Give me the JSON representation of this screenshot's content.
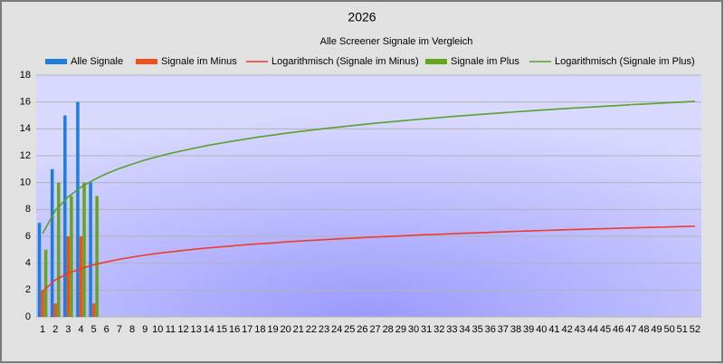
{
  "chart_data": {
    "type": "bar",
    "title": "2026",
    "subtitle": "Alle Screener Signale im Vergleich",
    "categories": [
      1,
      2,
      3,
      4,
      5,
      6,
      7,
      8,
      9,
      10,
      11,
      12,
      13,
      14,
      15,
      16,
      17,
      18,
      19,
      20,
      21,
      22,
      23,
      24,
      25,
      26,
      27,
      28,
      29,
      30,
      31,
      32,
      33,
      34,
      35,
      36,
      37,
      38,
      39,
      40,
      41,
      42,
      43,
      44,
      45,
      46,
      47,
      48,
      49,
      50,
      51,
      52
    ],
    "ylim": [
      0,
      18
    ],
    "yticks": [
      0,
      2,
      4,
      6,
      8,
      10,
      12,
      14,
      16,
      18
    ],
    "grid": true,
    "legend": "top",
    "series": [
      {
        "name": "Alle Signale",
        "type": "bar",
        "color": "#1f7fd8",
        "values": [
          7,
          11,
          15,
          16,
          10,
          null,
          null,
          null,
          null,
          null,
          null,
          null,
          null,
          null,
          null,
          null,
          null,
          null,
          null,
          null,
          null,
          null,
          null,
          null,
          null,
          null,
          null,
          null,
          null,
          null,
          null,
          null,
          null,
          null,
          null,
          null,
          null,
          null,
          null,
          null,
          null,
          null,
          null,
          null,
          null,
          null,
          null,
          null,
          null,
          null,
          null,
          null
        ]
      },
      {
        "name": "Signale im Minus",
        "type": "bar",
        "color": "#f0501e",
        "values": [
          2,
          1,
          6,
          6,
          1,
          null,
          null,
          null,
          null,
          null,
          null,
          null,
          null,
          null,
          null,
          null,
          null,
          null,
          null,
          null,
          null,
          null,
          null,
          null,
          null,
          null,
          null,
          null,
          null,
          null,
          null,
          null,
          null,
          null,
          null,
          null,
          null,
          null,
          null,
          null,
          null,
          null,
          null,
          null,
          null,
          null,
          null,
          null,
          null,
          null,
          null,
          null
        ]
      },
      {
        "name": "Logarithmisch (Signale im Minus)",
        "type": "line",
        "color": "#f03a2a",
        "values": [
          1.9,
          2.75,
          3.25,
          3.6,
          3.88,
          4.1,
          4.29,
          4.45,
          4.6,
          4.73,
          4.84,
          4.95,
          5.05,
          5.14,
          5.22,
          5.3,
          5.38,
          5.45,
          5.51,
          5.58,
          5.64,
          5.69,
          5.75,
          5.8,
          5.85,
          5.9,
          5.95,
          5.99,
          6.03,
          6.08,
          6.12,
          6.15,
          6.19,
          6.23,
          6.26,
          6.3,
          6.33,
          6.37,
          6.4,
          6.43,
          6.46,
          6.49,
          6.52,
          6.55,
          6.57,
          6.6,
          6.63,
          6.65,
          6.68,
          6.7,
          6.73,
          6.75
        ]
      },
      {
        "name": "Signale im Plus",
        "type": "bar",
        "color": "#66a61e",
        "values": [
          5,
          10,
          9,
          10,
          9,
          null,
          null,
          null,
          null,
          null,
          null,
          null,
          null,
          null,
          null,
          null,
          null,
          null,
          null,
          null,
          null,
          null,
          null,
          null,
          null,
          null,
          null,
          null,
          null,
          null,
          null,
          null,
          null,
          null,
          null,
          null,
          null,
          null,
          null,
          null,
          null,
          null,
          null,
          null,
          null,
          null,
          null,
          null,
          null,
          null,
          null,
          null
        ]
      },
      {
        "name": "Logarithmisch (Signale im Plus)",
        "type": "line",
        "color": "#5aa02a",
        "values": [
          6.2,
          7.93,
          8.94,
          9.66,
          10.21,
          10.67,
          11.05,
          11.38,
          11.68,
          11.94,
          12.18,
          12.39,
          12.59,
          12.78,
          12.95,
          13.11,
          13.26,
          13.41,
          13.54,
          13.67,
          13.79,
          13.91,
          14.02,
          14.12,
          14.22,
          14.32,
          14.42,
          14.51,
          14.59,
          14.68,
          14.76,
          14.84,
          14.92,
          14.99,
          15.06,
          15.13,
          15.2,
          15.27,
          15.33,
          15.4,
          15.46,
          15.52,
          15.58,
          15.63,
          15.69,
          15.74,
          15.8,
          15.85,
          15.9,
          15.95,
          16.0,
          16.05
        ]
      }
    ]
  }
}
